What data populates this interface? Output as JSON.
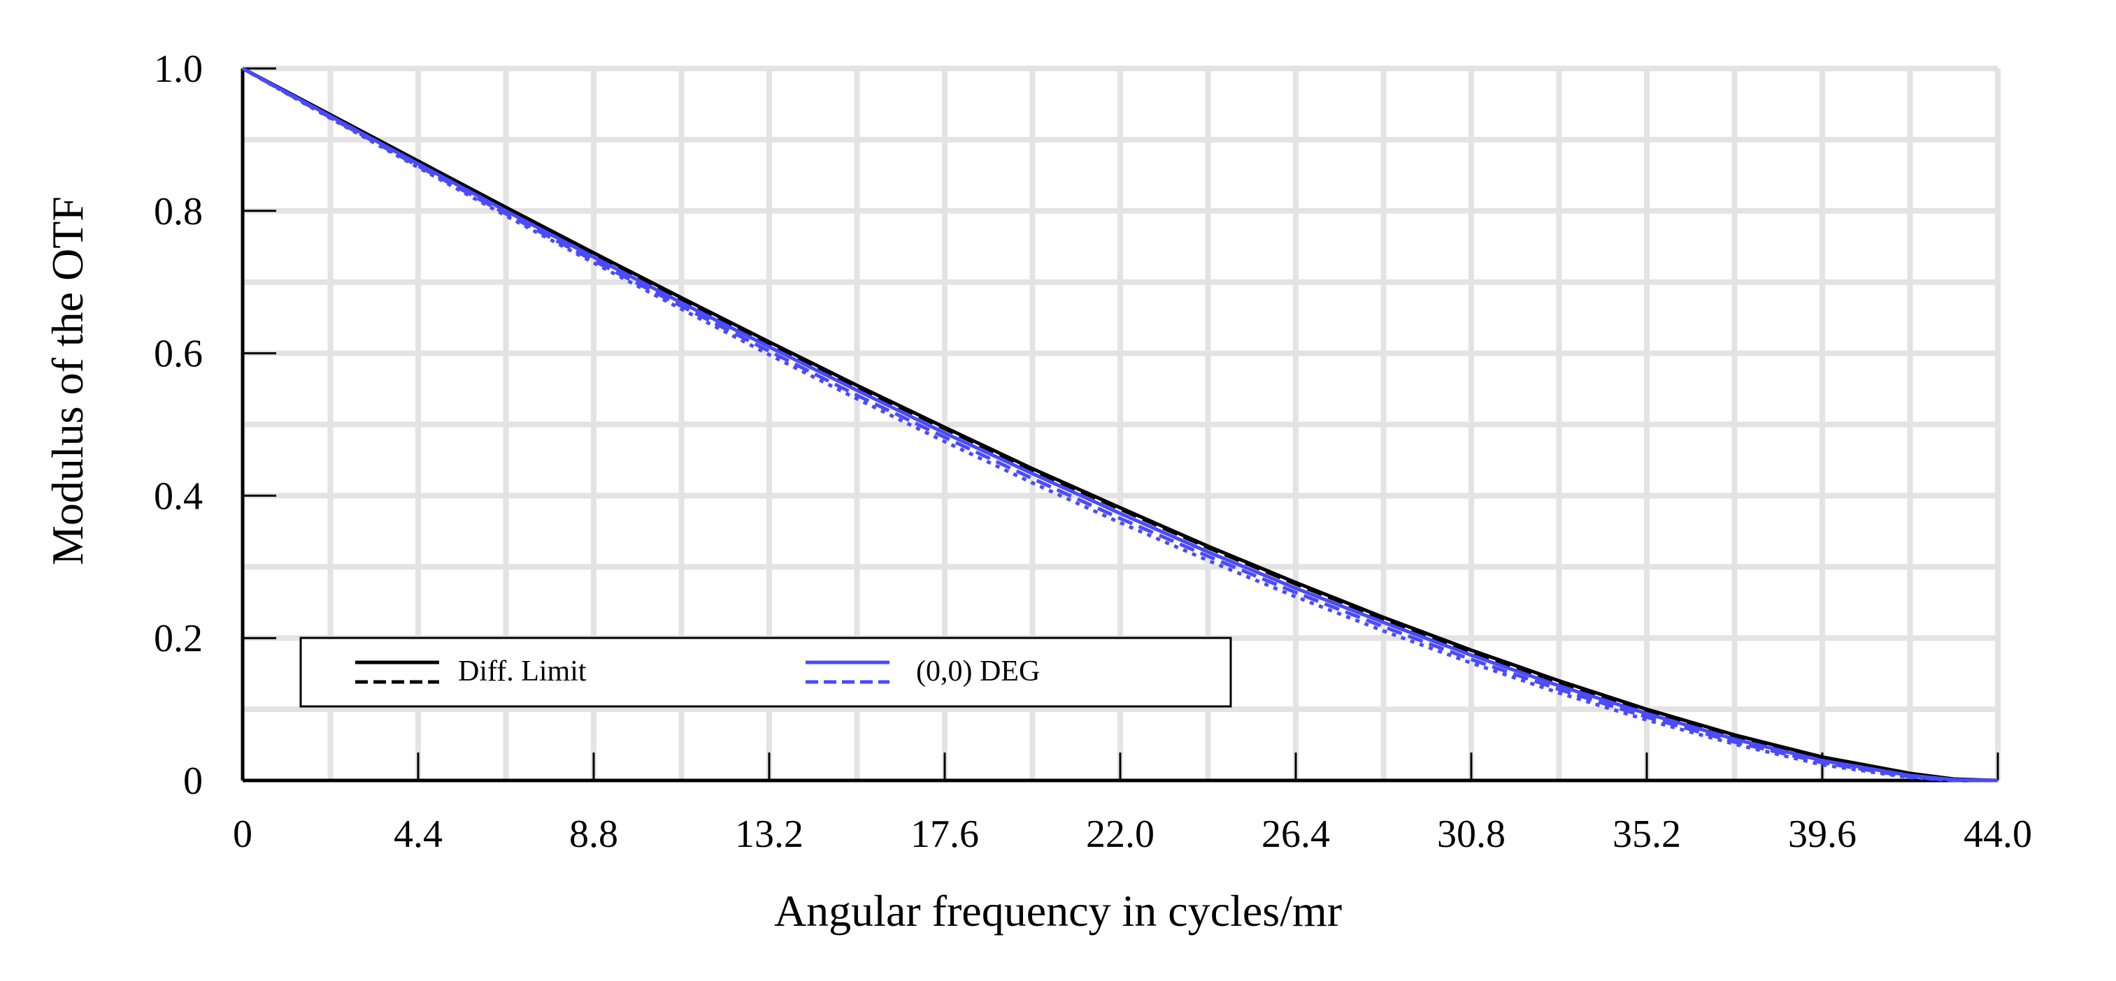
{
  "chart_data": {
    "type": "line",
    "title": "",
    "xlabel": "Angular frequency in cycles/mr",
    "ylabel": "Modulus of the OTF",
    "xlim": [
      0,
      44.0
    ],
    "ylim": [
      0,
      1.0
    ],
    "grid": true,
    "x_ticks": [
      "0",
      "4.4",
      "8.8",
      "13.2",
      "17.6",
      "22.0",
      "26.4",
      "30.8",
      "35.2",
      "39.6",
      "44.0"
    ],
    "y_ticks": [
      "0",
      "0.2",
      "0.4",
      "0.6",
      "0.8",
      "1.0"
    ],
    "x_tick_values": [
      0,
      4.4,
      8.8,
      13.2,
      17.6,
      22.0,
      26.4,
      30.8,
      35.2,
      39.6,
      44.0
    ],
    "y_tick_values": [
      0,
      0.2,
      0.4,
      0.6,
      0.8,
      1.0
    ],
    "legend_position": "bottom-left",
    "x": [
      0,
      2.2,
      4.4,
      6.6,
      8.8,
      11.0,
      13.2,
      15.4,
      17.6,
      19.8,
      22.0,
      24.2,
      26.4,
      28.6,
      30.8,
      33.0,
      35.2,
      37.4,
      39.6,
      41.8,
      42.9,
      44.0
    ],
    "series": [
      {
        "name": "Diff. Limit",
        "legend_label": "Diff. Limit",
        "style": "solid",
        "color": "#000000",
        "values": [
          1.0,
          0.935,
          0.87,
          0.805,
          0.741,
          0.678,
          0.616,
          0.555,
          0.496,
          0.438,
          0.383,
          0.329,
          0.278,
          0.229,
          0.183,
          0.14,
          0.1,
          0.064,
          0.033,
          0.01,
          0.002,
          0.0
        ]
      },
      {
        "name": "Diff. Limit (dashed)",
        "style": "dashed",
        "color": "#000000",
        "values": [
          1.0,
          0.934,
          0.868,
          0.803,
          0.739,
          0.676,
          0.614,
          0.553,
          0.494,
          0.436,
          0.381,
          0.327,
          0.276,
          0.227,
          0.181,
          0.138,
          0.098,
          0.062,
          0.031,
          0.009,
          0.001,
          0.0
        ]
      },
      {
        "name": "(0,0) DEG",
        "legend_label": "(0,0) DEG",
        "style": "solid",
        "color": "#4a4aff",
        "values": [
          1.0,
          0.933,
          0.866,
          0.8,
          0.735,
          0.671,
          0.609,
          0.548,
          0.488,
          0.431,
          0.375,
          0.321,
          0.27,
          0.222,
          0.176,
          0.133,
          0.094,
          0.058,
          0.028,
          0.007,
          0.001,
          0.0
        ]
      },
      {
        "name": "(0,0) DEG (dashed)",
        "style": "dashed",
        "color": "#4a4aff",
        "values": [
          1.0,
          0.931,
          0.863,
          0.796,
          0.73,
          0.666,
          0.603,
          0.541,
          0.482,
          0.424,
          0.368,
          0.315,
          0.264,
          0.216,
          0.17,
          0.128,
          0.089,
          0.054,
          0.025,
          0.005,
          0.0,
          0.0
        ]
      },
      {
        "name": "(0,0) DEG (dotted)",
        "style": "dotted",
        "color": "#4a4aff",
        "values": [
          1.0,
          0.93,
          0.861,
          0.793,
          0.727,
          0.662,
          0.598,
          0.536,
          0.476,
          0.418,
          0.362,
          0.309,
          0.258,
          0.21,
          0.165,
          0.123,
          0.085,
          0.051,
          0.022,
          0.004,
          0.0,
          0.0
        ]
      }
    ]
  }
}
